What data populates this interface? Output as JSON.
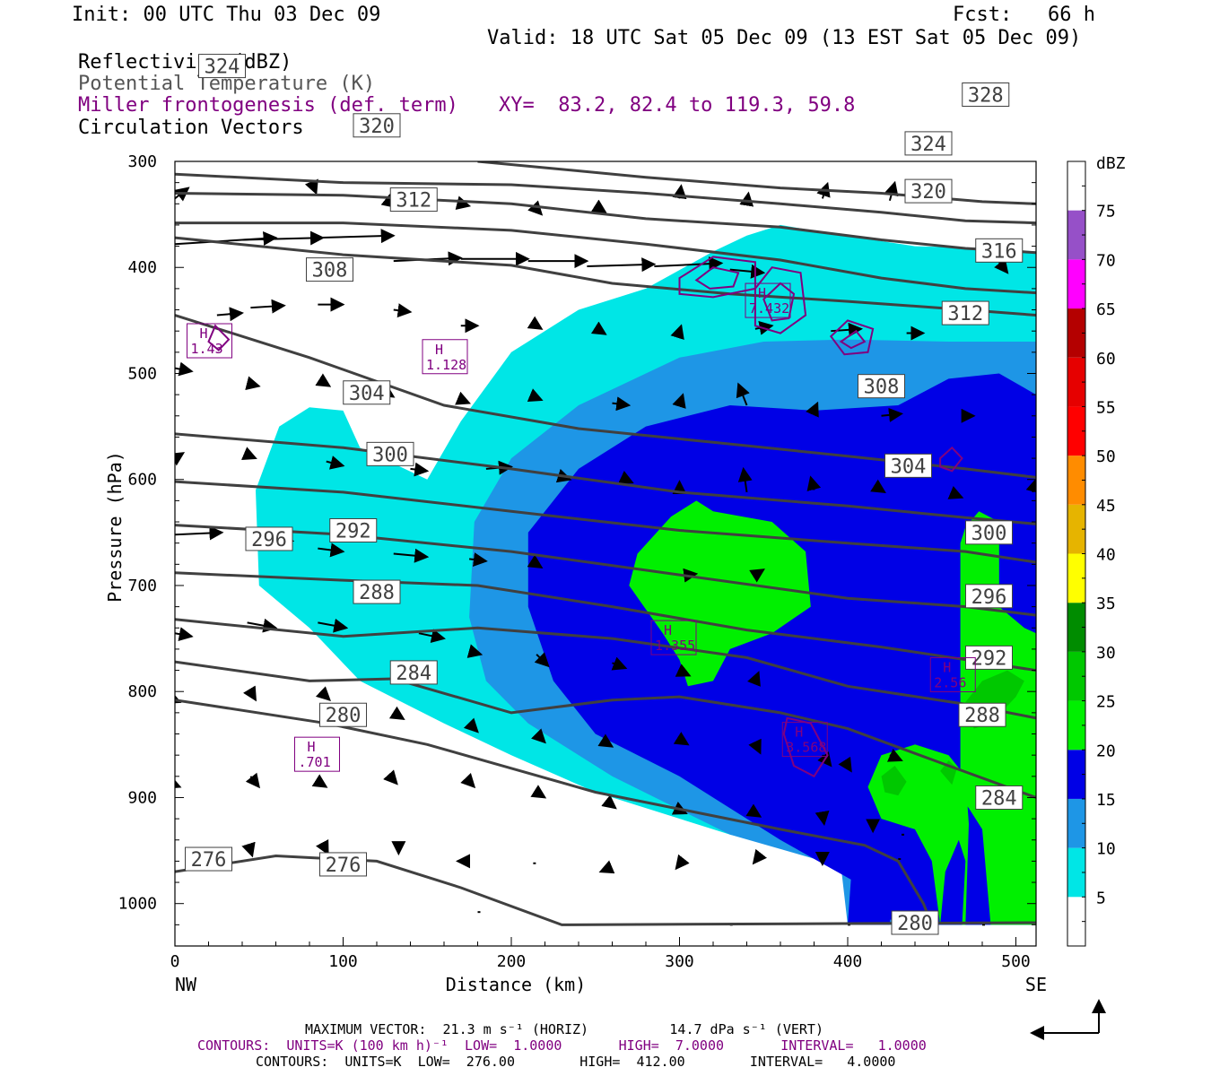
{
  "header": {
    "init": "Init: 00 UTC Thu 03 Dec 09",
    "fcst": "Fcst:   66 h",
    "valid": "Valid: 18 UTC Sat 05 Dec 09 (13 EST Sat 05 Dec 09)",
    "field1": "Reflectivity (dBZ)",
    "field2": "Potential Temperature (K)",
    "field3": "Miller frontogenesis (def. term)",
    "xy": "XY=  83.2, 82.4 to 119.3, 59.8",
    "field4": "Circulation Vectors"
  },
  "footer": {
    "max_vector": "MAXIMUM VECTOR:  21.3 m s⁻¹ (HORIZ)          14.7 dPa s⁻¹ (VERT)",
    "contours_purple": "CONTOURS:  UNITS=K (100 km h)⁻¹  LOW=  1.0000       HIGH=  7.0000       INTERVAL=   1.0000",
    "contours_black": "CONTOURS:  UNITS=K  LOW=  276.00        HIGH=  412.00        INTERVAL=   4.0000"
  },
  "chart_data": {
    "type": "cross-section",
    "xlabel": "Distance (km)",
    "ylabel": "Pressure (hPa)",
    "xlim": [
      0,
      512
    ],
    "ylim": [
      300,
      1040
    ],
    "x_ticks": [
      0,
      100,
      200,
      300,
      400,
      500
    ],
    "y_ticks": [
      300,
      400,
      500,
      600,
      700,
      800,
      900,
      1000
    ],
    "end_left": "NW",
    "end_right": "SE",
    "colorbar": {
      "unit": "dBZ",
      "levels": [
        5,
        10,
        15,
        20,
        25,
        30,
        35,
        40,
        45,
        50,
        55,
        60,
        65,
        70,
        75
      ],
      "colors": [
        "#ffffff",
        "#00e6e6",
        "#1e96e6",
        "#0000e6",
        "#00f000",
        "#00c800",
        "#008c00",
        "#ffff00",
        "#e6b400",
        "#ff8c00",
        "#ff0000",
        "#e60000",
        "#b40000",
        "#ff00ff",
        "#9650c8"
      ]
    },
    "reflectivity_colors": {
      "dbz5": "#00e6e6",
      "dbz10": "#1e96e6",
      "dbz15": "#0000e6",
      "dbz20": "#00f000",
      "dbz25": "#00c800"
    },
    "theta_lines": [
      {
        "value": 276,
        "points": [
          [
            0,
            970
          ],
          [
            60,
            955
          ],
          [
            120,
            960
          ],
          [
            170,
            985
          ],
          [
            230,
            1020
          ],
          [
            512,
            1018
          ]
        ],
        "labels": [
          [
            20,
            958
          ],
          [
            100,
            963
          ]
        ]
      },
      {
        "value": 280,
        "points": [
          [
            0,
            808
          ],
          [
            90,
            830
          ],
          [
            150,
            850
          ],
          [
            250,
            895
          ],
          [
            360,
            930
          ],
          [
            410,
            945
          ],
          [
            430,
            960
          ],
          [
            445,
            1000
          ],
          [
            450,
            1020
          ]
        ],
        "labels": [
          [
            100,
            822
          ],
          [
            440,
            1018
          ]
        ]
      },
      {
        "value": 284,
        "points": [
          [
            0,
            772
          ],
          [
            80,
            790
          ],
          [
            130,
            788
          ],
          [
            200,
            820
          ],
          [
            260,
            808
          ],
          [
            300,
            805
          ],
          [
            360,
            820
          ],
          [
            400,
            835
          ],
          [
            460,
            870
          ],
          [
            512,
            900
          ]
        ],
        "labels": [
          [
            142,
            782
          ],
          [
            490,
            900
          ]
        ]
      },
      {
        "value": 288,
        "points": [
          [
            0,
            732
          ],
          [
            100,
            748
          ],
          [
            180,
            740
          ],
          [
            260,
            750
          ],
          [
            340,
            768
          ],
          [
            400,
            795
          ],
          [
            470,
            812
          ],
          [
            512,
            825
          ]
        ],
        "labels": [
          [
            120,
            706
          ],
          [
            480,
            822
          ]
        ]
      },
      {
        "value": 292,
        "points": [
          [
            0,
            688
          ],
          [
            100,
            695
          ],
          [
            180,
            700
          ],
          [
            260,
            720
          ],
          [
            340,
            742
          ],
          [
            420,
            758
          ],
          [
            470,
            770
          ],
          [
            512,
            780
          ]
        ],
        "labels": [
          [
            106,
            648
          ],
          [
            484,
            768
          ]
        ]
      },
      {
        "value": 296,
        "points": [
          [
            0,
            643
          ],
          [
            100,
            652
          ],
          [
            200,
            668
          ],
          [
            300,
            690
          ],
          [
            400,
            712
          ],
          [
            470,
            720
          ],
          [
            512,
            728
          ]
        ],
        "labels": [
          [
            56,
            656
          ],
          [
            484,
            710
          ]
        ]
      },
      {
        "value": 300,
        "points": [
          [
            0,
            602
          ],
          [
            100,
            612
          ],
          [
            200,
            630
          ],
          [
            300,
            648
          ],
          [
            400,
            660
          ],
          [
            470,
            668
          ],
          [
            512,
            678
          ]
        ],
        "labels": [
          [
            128,
            576
          ],
          [
            484,
            650
          ]
        ]
      },
      {
        "value": 304,
        "points": [
          [
            0,
            557
          ],
          [
            100,
            570
          ],
          [
            200,
            590
          ],
          [
            300,
            612
          ],
          [
            400,
            625
          ],
          [
            470,
            636
          ],
          [
            512,
            642
          ]
        ],
        "labels": [
          [
            114,
            518
          ],
          [
            436,
            587
          ]
        ]
      },
      {
        "value": 308,
        "points": [
          [
            0,
            445
          ],
          [
            80,
            485
          ],
          [
            160,
            530
          ],
          [
            240,
            552
          ],
          [
            320,
            565
          ],
          [
            400,
            578
          ],
          [
            470,
            590
          ],
          [
            512,
            598
          ]
        ],
        "labels": [
          [
            92,
            402
          ],
          [
            420,
            512
          ]
        ]
      },
      {
        "value": 312,
        "points": [
          [
            0,
            372
          ],
          [
            100,
            388
          ],
          [
            200,
            398
          ],
          [
            260,
            415
          ],
          [
            330,
            425
          ],
          [
            400,
            432
          ],
          [
            470,
            440
          ],
          [
            512,
            445
          ]
        ],
        "labels": [
          [
            142,
            336
          ],
          [
            470,
            443
          ]
        ]
      },
      {
        "value": 316,
        "points": [
          [
            0,
            358
          ],
          [
            100,
            358
          ],
          [
            200,
            365
          ],
          [
            280,
            378
          ],
          [
            360,
            393
          ],
          [
            420,
            410
          ],
          [
            470,
            420
          ],
          [
            512,
            424
          ]
        ],
        "labels": [
          [
            490,
            384
          ]
        ]
      },
      {
        "value": 320,
        "points": [
          [
            0,
            330
          ],
          [
            100,
            332
          ],
          [
            200,
            340
          ],
          [
            280,
            354
          ],
          [
            360,
            362
          ],
          [
            420,
            374
          ],
          [
            470,
            382
          ],
          [
            512,
            386
          ]
        ],
        "labels": [
          [
            120,
            266
          ],
          [
            448,
            328
          ]
        ]
      },
      {
        "value": 324,
        "points": [
          [
            0,
            312
          ],
          [
            100,
            320
          ],
          [
            200,
            322
          ],
          [
            280,
            330
          ],
          [
            360,
            340
          ],
          [
            420,
            348
          ],
          [
            470,
            356
          ],
          [
            512,
            358
          ]
        ],
        "labels": [
          [
            28,
            210
          ],
          [
            448,
            283
          ]
        ]
      },
      {
        "value": 328,
        "points": [
          [
            180,
            300
          ],
          [
            280,
            315
          ],
          [
            360,
            325
          ],
          [
            420,
            330
          ],
          [
            480,
            338
          ],
          [
            512,
            340
          ]
        ],
        "labels": [
          [
            482,
            237
          ]
        ]
      }
    ],
    "frontogenesis_highs": [
      {
        "label": "1.43",
        "x": 20,
        "p": 470
      },
      {
        "label": "1.128",
        "x": 160,
        "p": 485
      },
      {
        "label": "7.432",
        "x": 352,
        "p": 432
      },
      {
        "label": "1.355",
        "x": 296,
        "p": 750
      },
      {
        "label": ".701",
        "x": 84,
        "p": 860
      },
      {
        "label": "3.568",
        "x": 374,
        "p": 846
      },
      {
        "label": "2.56",
        "x": 462,
        "p": 785
      }
    ]
  }
}
